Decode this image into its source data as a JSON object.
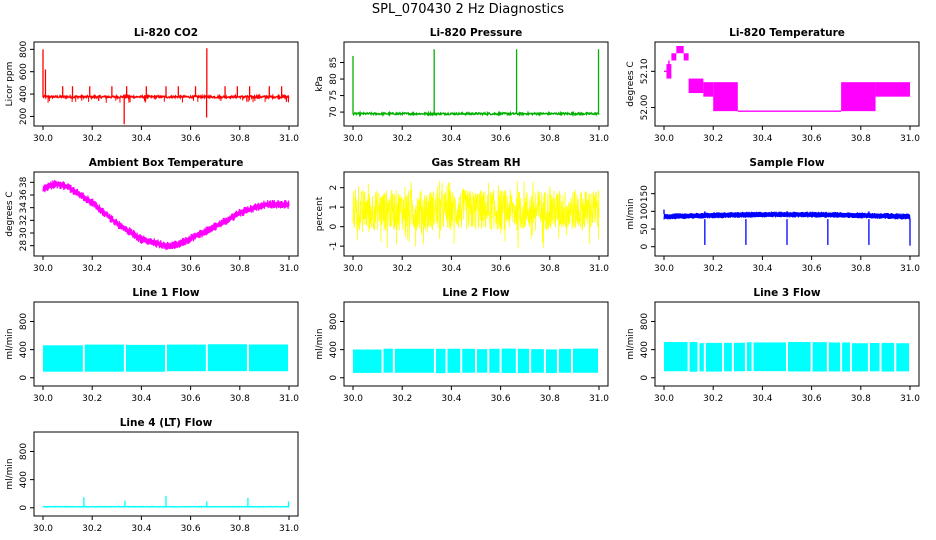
{
  "page": {
    "title": "SPL_070430  2 Hz Diagnostics"
  },
  "chart_data": [
    {
      "id": "co2",
      "type": "line",
      "title": "Li-820 CO2",
      "ylabel": "Licor ppm",
      "xlabel": "",
      "color": "#ff0000",
      "xlim": [
        30.0,
        31.0
      ],
      "ylim": [
        150,
        830
      ],
      "xticks": [
        30.0,
        30.2,
        30.4,
        30.6,
        30.8,
        31.0
      ],
      "xtick_labels": [
        "30.0",
        "30.2",
        "30.4",
        "30.6",
        "30.8",
        "31.0"
      ],
      "yticks": [
        200,
        400,
        600,
        800
      ],
      "ytick_labels": [
        "200",
        "400",
        "600",
        "800"
      ],
      "pattern": "baseline_spikes",
      "params": {
        "base": 375,
        "noise": 10,
        "spikes_up": [
          [
            30.0,
            800
          ],
          [
            30.01,
            620
          ],
          [
            30.08,
            470
          ],
          [
            30.12,
            470
          ],
          [
            30.19,
            470
          ],
          [
            30.28,
            470
          ],
          [
            30.34,
            470
          ],
          [
            30.42,
            470
          ],
          [
            30.5,
            470
          ],
          [
            30.55,
            470
          ],
          [
            30.62,
            470
          ],
          [
            30.666,
            810
          ],
          [
            30.74,
            470
          ],
          [
            30.79,
            470
          ],
          [
            30.84,
            470
          ],
          [
            30.92,
            470
          ],
          [
            30.97,
            470
          ]
        ],
        "spikes_down": [
          [
            30.33,
            130
          ],
          [
            30.665,
            190
          ],
          [
            30.99,
            330
          ]
        ]
      }
    },
    {
      "id": "pressure",
      "type": "line",
      "title": "Li-820 Pressure",
      "ylabel": "kPa",
      "xlabel": "",
      "color": "#00b000",
      "xlim": [
        30.0,
        31.0
      ],
      "ylim": [
        67,
        90
      ],
      "xticks": [
        30.0,
        30.2,
        30.4,
        30.6,
        30.8,
        31.0
      ],
      "xtick_labels": [
        "30.0",
        "30.2",
        "30.4",
        "30.6",
        "30.8",
        "31.0"
      ],
      "yticks": [
        70,
        75,
        80,
        85
      ],
      "ytick_labels": [
        "70",
        "75",
        "80",
        "85"
      ],
      "pattern": "baseline_spikes",
      "params": {
        "base": 69.5,
        "noise": 0.3,
        "spikes_up": [
          [
            30.0,
            87
          ],
          [
            30.33,
            89
          ],
          [
            30.665,
            89
          ],
          [
            30.998,
            89
          ]
        ],
        "spikes_down": []
      }
    },
    {
      "id": "licor_temp",
      "type": "line",
      "title": "Li-820 Temperature",
      "ylabel": "degrees C",
      "xlabel": "",
      "color": "#ff00ff",
      "xlim": [
        30.0,
        31.0
      ],
      "ylim": [
        51.96,
        52.17
      ],
      "xticks": [
        30.0,
        30.2,
        30.4,
        30.6,
        30.8,
        31.0
      ],
      "xtick_labels": [
        "30.0",
        "30.2",
        "30.4",
        "30.6",
        "30.8",
        "31.0"
      ],
      "yticks": [
        52.0,
        52.1
      ],
      "ytick_labels": [
        "52.00",
        "52.10"
      ],
      "pattern": "temp_steps",
      "params": {
        "segments": [
          [
            30.0,
            30.01,
            52.1,
            52.1
          ],
          [
            30.01,
            30.03,
            52.08,
            52.12
          ],
          [
            30.03,
            30.05,
            52.13,
            52.15
          ],
          [
            30.05,
            30.08,
            52.15,
            52.17
          ],
          [
            30.08,
            30.1,
            52.13,
            52.15
          ],
          [
            30.1,
            30.16,
            52.04,
            52.08
          ],
          [
            30.16,
            30.2,
            52.03,
            52.07
          ],
          [
            30.2,
            30.3,
            51.99,
            52.07
          ],
          [
            30.3,
            30.72,
            51.99,
            51.99
          ],
          [
            30.72,
            30.86,
            51.99,
            52.07
          ],
          [
            30.86,
            31.0,
            52.03,
            52.07
          ]
        ]
      }
    },
    {
      "id": "box_temp",
      "type": "line",
      "title": "Ambient Box Temperature",
      "ylabel": "degrees C",
      "xlabel": "",
      "color": "#ff00ff",
      "xlim": [
        30.0,
        31.0
      ],
      "ylim": [
        27.0,
        39.0
      ],
      "xticks": [
        30.0,
        30.2,
        30.4,
        30.6,
        30.8,
        31.0
      ],
      "xtick_labels": [
        "30.0",
        "30.2",
        "30.4",
        "30.6",
        "30.8",
        "31.0"
      ],
      "yticks": [
        28,
        30,
        32,
        34,
        36,
        38
      ],
      "ytick_labels": [
        "28",
        "30",
        "32",
        "34",
        "36",
        "38"
      ],
      "pattern": "band_curve",
      "params": {
        "points": [
          [
            30.0,
            37.0
          ],
          [
            30.05,
            37.8
          ],
          [
            30.1,
            37.3
          ],
          [
            30.2,
            34.8
          ],
          [
            30.3,
            31.5
          ],
          [
            30.4,
            29.0
          ],
          [
            30.5,
            28.0
          ],
          [
            30.55,
            28.2
          ],
          [
            30.62,
            29.5
          ],
          [
            30.7,
            31.0
          ],
          [
            30.8,
            33.2
          ],
          [
            30.9,
            34.5
          ],
          [
            31.0,
            34.5
          ]
        ],
        "spread": 0.7
      }
    },
    {
      "id": "rh",
      "type": "line",
      "title": "Gas Stream RH",
      "ylabel": "percent",
      "xlabel": "",
      "color": "#ffff00",
      "xlim": [
        30.0,
        31.0
      ],
      "ylim": [
        -1.3,
        2.6
      ],
      "xticks": [
        30.0,
        30.2,
        30.4,
        30.6,
        30.8,
        31.0
      ],
      "xtick_labels": [
        "30.0",
        "30.2",
        "30.4",
        "30.6",
        "30.8",
        "31.0"
      ],
      "yticks": [
        -1,
        0,
        1,
        2
      ],
      "ytick_labels": [
        "-1",
        "0",
        "1",
        "2"
      ],
      "pattern": "noise_band",
      "params": {
        "lo": -1.2,
        "hi": 2.4,
        "core_lo": -0.2,
        "core_hi": 1.9
      }
    },
    {
      "id": "sample_flow",
      "type": "line",
      "title": "Sample Flow",
      "ylabel": "ml/min",
      "xlabel": "",
      "color": "#0000ff",
      "xlim": [
        30.0,
        31.0
      ],
      "ylim": [
        -15,
        200
      ],
      "xticks": [
        30.0,
        30.2,
        30.4,
        30.6,
        30.8,
        31.0
      ],
      "xtick_labels": [
        "30.0",
        "30.2",
        "30.4",
        "30.6",
        "30.8",
        "31.0"
      ],
      "yticks": [
        0,
        50,
        100,
        150
      ],
      "ytick_labels": [
        "0",
        "50",
        "100",
        "150"
      ],
      "pattern": "flow_band",
      "params": {
        "lo": 78,
        "hi": 92,
        "bulge": 6,
        "dips": [
          [
            30.166,
            5
          ],
          [
            30.333,
            5
          ],
          [
            30.5,
            5
          ],
          [
            30.666,
            5
          ],
          [
            30.833,
            5
          ],
          [
            31.0,
            3
          ]
        ],
        "spikes": [
          [
            30.0,
            105
          ],
          [
            30.166,
            100
          ],
          [
            30.5,
            100
          ],
          [
            30.833,
            100
          ]
        ]
      }
    },
    {
      "id": "line1",
      "type": "line",
      "title": "Line 1 Flow",
      "ylabel": "ml/min",
      "xlabel": "",
      "color": "#00ffff",
      "xlim": [
        30.0,
        31.0
      ],
      "ylim": [
        -60,
        1020
      ],
      "xticks": [
        30.0,
        30.2,
        30.4,
        30.6,
        30.8,
        31.0
      ],
      "xtick_labels": [
        "30.0",
        "30.2",
        "30.4",
        "30.6",
        "30.8",
        "31.0"
      ],
      "yticks": [
        0,
        400,
        800
      ],
      "ytick_labels": [
        "0",
        "400",
        "800"
      ],
      "pattern": "solid_block",
      "params": {
        "lo": 90,
        "hi": 470,
        "gaps": [
          30.166,
          30.333,
          30.5,
          30.666,
          30.833
        ]
      }
    },
    {
      "id": "line2",
      "type": "line",
      "title": "Line 2 Flow",
      "ylabel": "ml/min",
      "xlabel": "",
      "color": "#00ffff",
      "xlim": [
        30.0,
        31.0
      ],
      "ylim": [
        -60,
        1020
      ],
      "xticks": [
        30.0,
        30.2,
        30.4,
        30.6,
        30.8,
        31.0
      ],
      "xtick_labels": [
        "30.0",
        "30.2",
        "30.4",
        "30.6",
        "30.8",
        "31.0"
      ],
      "yticks": [
        0,
        400,
        800
      ],
      "ytick_labels": [
        "0",
        "400",
        "800"
      ],
      "pattern": "solid_block",
      "params": {
        "lo": 70,
        "hi": 410,
        "gaps": [
          30.166,
          30.333,
          30.5,
          30.666,
          30.833,
          30.12,
          30.38,
          30.44,
          30.55,
          30.6,
          30.72,
          30.78,
          30.89
        ]
      }
    },
    {
      "id": "line3",
      "type": "line",
      "title": "Line 3 Flow",
      "ylabel": "ml/min",
      "xlabel": "",
      "color": "#00ffff",
      "xlim": [
        30.0,
        31.0
      ],
      "ylim": [
        -60,
        1020
      ],
      "xticks": [
        30.0,
        30.2,
        30.4,
        30.6,
        30.8,
        31.0
      ],
      "xtick_labels": [
        "30.0",
        "30.2",
        "30.4",
        "30.6",
        "30.8",
        "31.0"
      ],
      "yticks": [
        0,
        400,
        800
      ],
      "ytick_labels": [
        "0",
        "400",
        "800"
      ],
      "pattern": "solid_block",
      "params": {
        "lo": 90,
        "hi": 500,
        "gaps": [
          30.166,
          30.333,
          30.5,
          30.666,
          30.833,
          30.1,
          30.14,
          30.24,
          30.28,
          30.36,
          30.6,
          30.72,
          30.76,
          30.88,
          30.94
        ]
      }
    },
    {
      "id": "line4",
      "type": "line",
      "title": "Line 4 (LT) Flow",
      "ylabel": "ml/min",
      "xlabel": "",
      "color": "#00ffff",
      "xlim": [
        30.0,
        31.0
      ],
      "ylim": [
        -60,
        1020
      ],
      "xticks": [
        30.0,
        30.2,
        30.4,
        30.6,
        30.8,
        31.0
      ],
      "xtick_labels": [
        "30.0",
        "30.2",
        "30.4",
        "30.6",
        "30.8",
        "31.0"
      ],
      "yticks": [
        0,
        400,
        800
      ],
      "ytick_labels": [
        "0",
        "400",
        "800"
      ],
      "pattern": "baseline_spikes",
      "params": {
        "base": 15,
        "noise": 3,
        "spikes_up": [
          [
            30.166,
            150
          ],
          [
            30.333,
            100
          ],
          [
            30.5,
            170
          ],
          [
            30.666,
            90
          ],
          [
            30.833,
            140
          ],
          [
            30.998,
            90
          ]
        ],
        "spikes_down": []
      }
    }
  ]
}
